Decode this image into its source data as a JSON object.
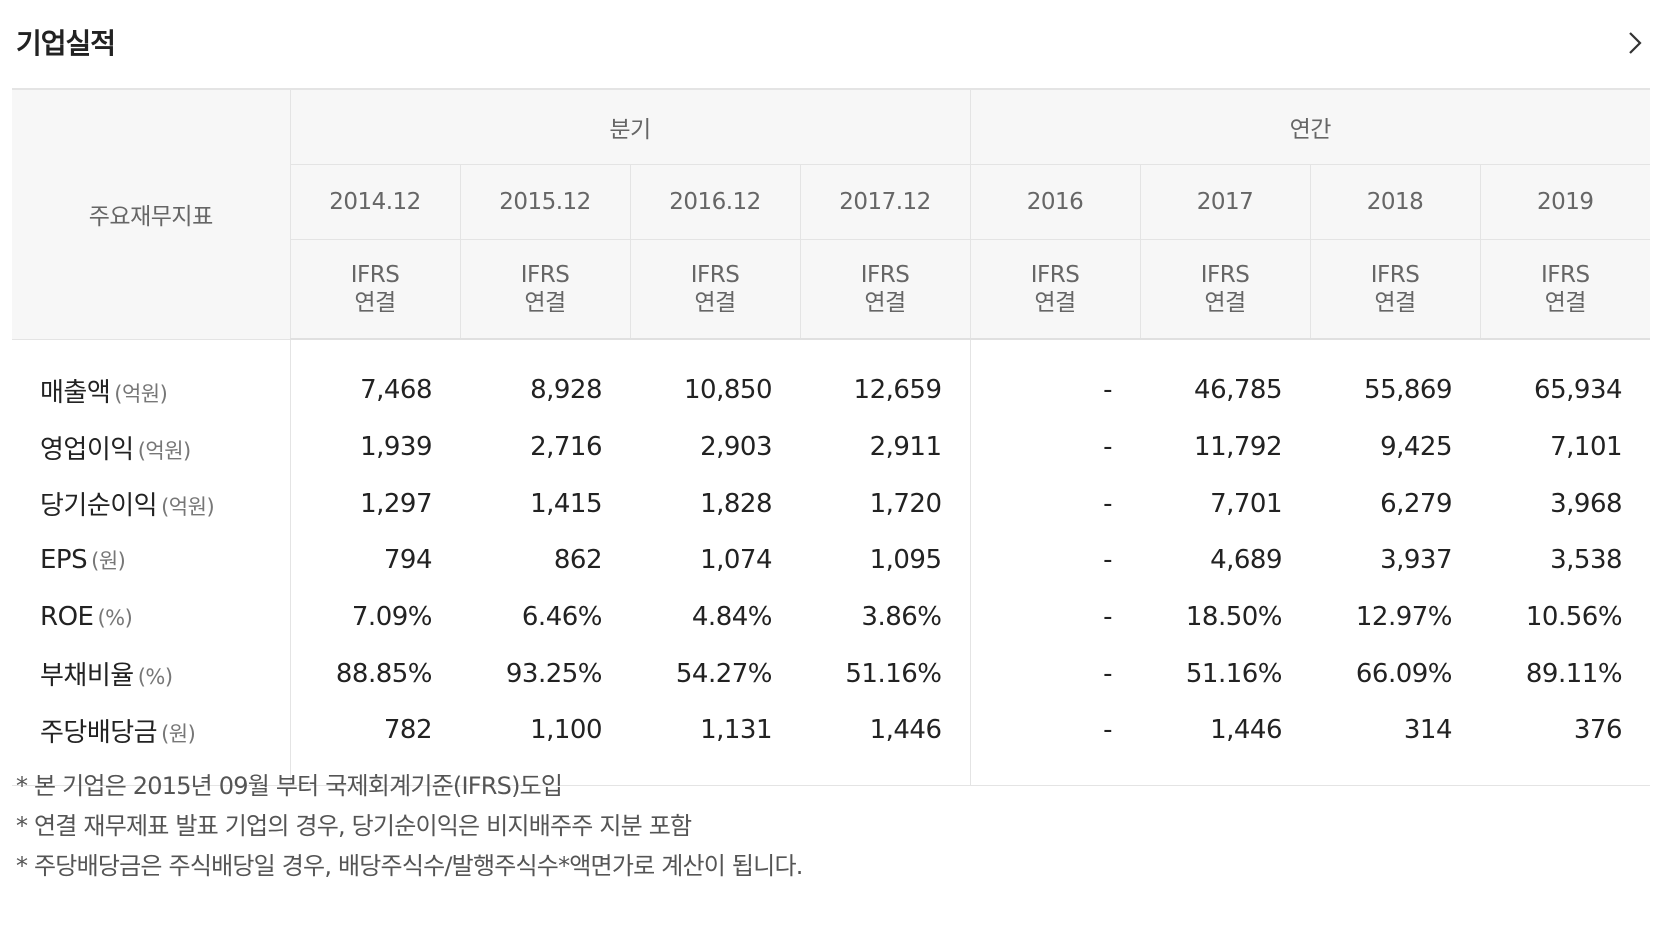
{
  "header": {
    "title": "기업실적",
    "more_icon": "chevron-right-icon"
  },
  "table": {
    "corner_label": "주요재무지표",
    "group_quarter": "분기",
    "group_annual": "연간",
    "periods": [
      "2014.12",
      "2015.12",
      "2016.12",
      "2017.12",
      "2016",
      "2017",
      "2018",
      "2019"
    ],
    "standard_line1": "IFRS",
    "standard_line2": "연결",
    "rows": [
      {
        "name": "매출액",
        "unit": "(억원)",
        "values": [
          "7,468",
          "8,928",
          "10,850",
          "12,659",
          "-",
          "46,785",
          "55,869",
          "65,934"
        ]
      },
      {
        "name": "영업이익",
        "unit": "(억원)",
        "values": [
          "1,939",
          "2,716",
          "2,903",
          "2,911",
          "-",
          "11,792",
          "9,425",
          "7,101"
        ]
      },
      {
        "name": "당기순이익",
        "unit": "(억원)",
        "values": [
          "1,297",
          "1,415",
          "1,828",
          "1,720",
          "-",
          "7,701",
          "6,279",
          "3,968"
        ]
      },
      {
        "name": "EPS",
        "unit": "(원)",
        "values": [
          "794",
          "862",
          "1,074",
          "1,095",
          "-",
          "4,689",
          "3,937",
          "3,538"
        ]
      },
      {
        "name": "ROE",
        "unit": "(%)",
        "values": [
          "7.09%",
          "6.46%",
          "4.84%",
          "3.86%",
          "-",
          "18.50%",
          "12.97%",
          "10.56%"
        ]
      },
      {
        "name": "부채비율",
        "unit": "(%)",
        "values": [
          "88.85%",
          "93.25%",
          "54.27%",
          "51.16%",
          "-",
          "51.16%",
          "66.09%",
          "89.11%"
        ]
      },
      {
        "name": "주당배당금",
        "unit": "(원)",
        "values": [
          "782",
          "1,100",
          "1,131",
          "1,446",
          "-",
          "1,446",
          "314",
          "376"
        ]
      }
    ]
  },
  "notes": [
    "* 본 기업은 2015년 09월 부터 국제회계기준(IFRS)도입",
    "* 연결 재무제표 발표 기업의 경우, 당기순이익은 비지배주주 지분 포함",
    "* 주당배당금은 주식배당일 경우, 배당주식수/발행주식수*액면가로 계산이 됩니다."
  ]
}
